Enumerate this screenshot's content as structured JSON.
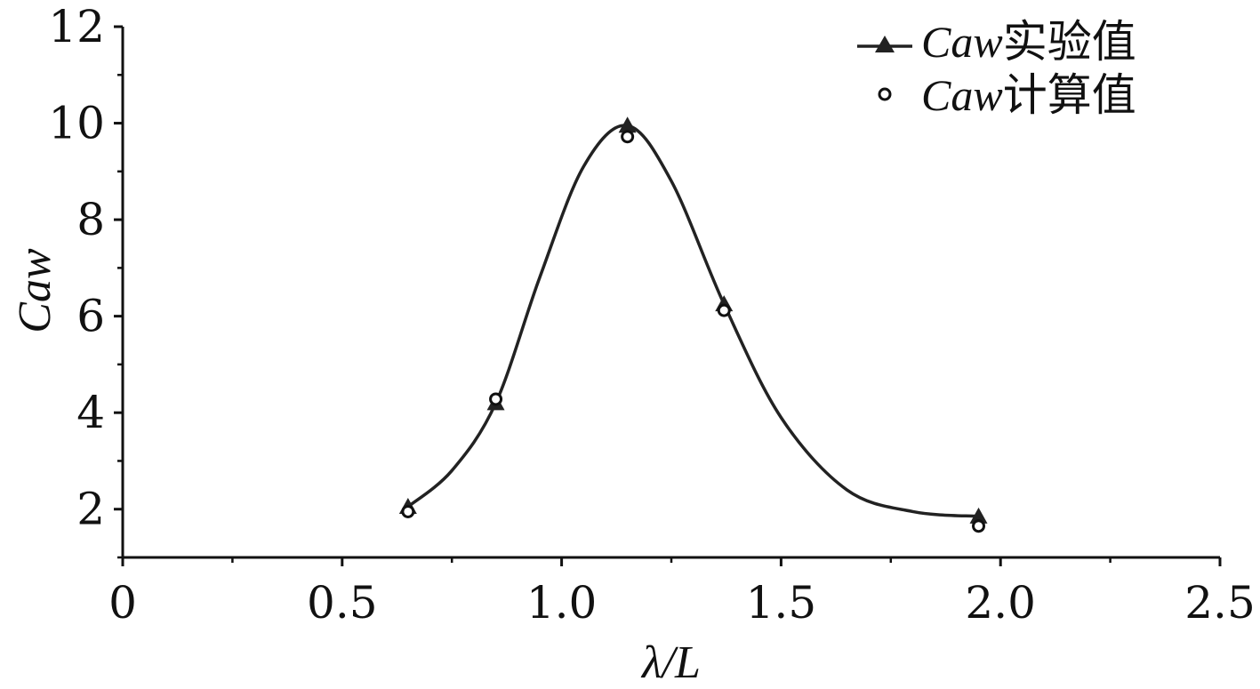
{
  "chart_data": {
    "type": "line",
    "title": "",
    "xlabel": "λ/L",
    "ylabel": "Caw",
    "xlim": [
      0,
      2.5
    ],
    "ylim": [
      1,
      12
    ],
    "x_ticks": [
      0,
      0.5,
      1.0,
      1.5,
      2.0,
      2.5
    ],
    "x_tick_labels": [
      "0",
      "0.5",
      "1.0",
      "1.5",
      "2.0",
      "2.5"
    ],
    "y_ticks": [
      2,
      4,
      6,
      8,
      10,
      12
    ],
    "y_tick_labels": [
      "2",
      "4",
      "6",
      "8",
      "10",
      "12"
    ],
    "grid": false,
    "legend_position": "top-right",
    "series": [
      {
        "name_italic": "Caw",
        "name_suffix": "实验值",
        "marker": "triangle",
        "style": "line-with-markers",
        "color": "#222222",
        "x": [
          0.65,
          0.85,
          1.15,
          1.37,
          1.95
        ],
        "y": [
          2.05,
          4.2,
          9.95,
          6.25,
          1.85
        ],
        "curve_x": [
          0.65,
          0.75,
          0.85,
          0.95,
          1.05,
          1.15,
          1.25,
          1.37,
          1.5,
          1.65,
          1.8,
          1.95
        ],
        "curve_y": [
          2.05,
          2.8,
          4.2,
          6.8,
          9.1,
          9.95,
          8.8,
          6.25,
          3.9,
          2.4,
          1.95,
          1.85
        ]
      },
      {
        "name_italic": "Caw",
        "name_suffix": "计算值",
        "marker": "circle-open",
        "style": "markers-only",
        "color": "#111111",
        "x": [
          0.65,
          0.85,
          1.15,
          1.37,
          1.95
        ],
        "y": [
          1.95,
          4.28,
          9.72,
          6.12,
          1.65
        ]
      }
    ]
  }
}
